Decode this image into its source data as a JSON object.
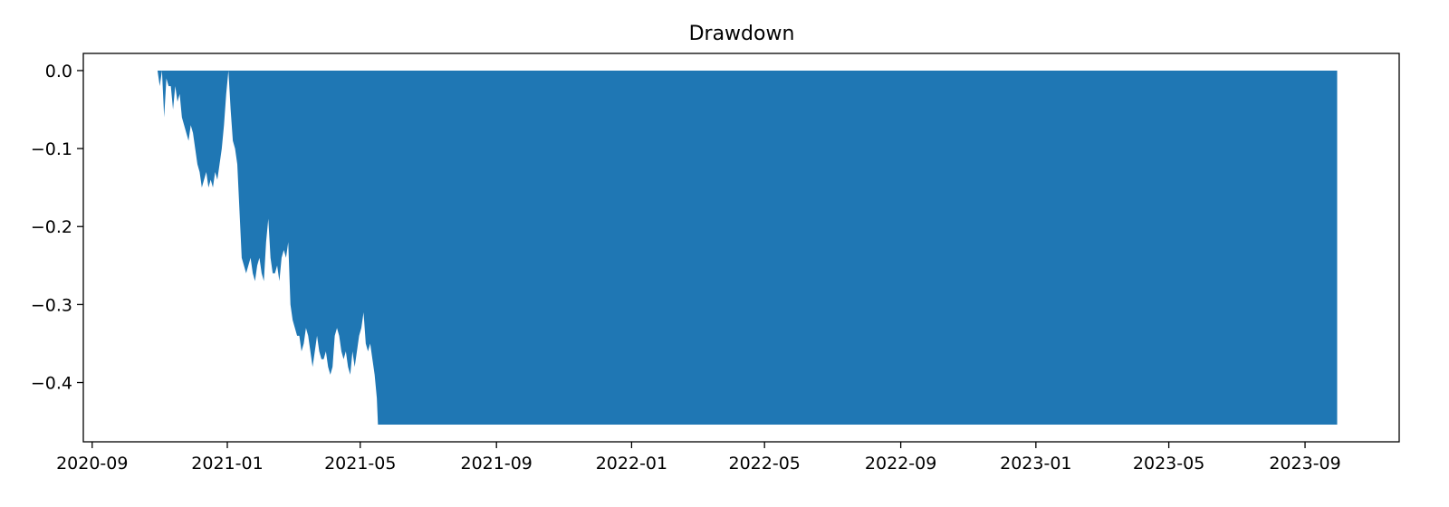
{
  "chart_data": {
    "type": "area",
    "title": "Drawdown",
    "xlabel": "",
    "ylabel": "",
    "x_axis": {
      "scale": "date",
      "ticks": [
        "2020-09-01",
        "2021-01-01",
        "2021-05-01",
        "2021-09-01",
        "2022-01-01",
        "2022-05-01",
        "2022-09-01",
        "2023-01-01",
        "2023-05-01",
        "2023-09-01"
      ],
      "tick_labels": [
        "2020-09",
        "2021-01",
        "2021-05",
        "2021-09",
        "2022-01",
        "2022-05",
        "2022-09",
        "2023-01",
        "2023-05",
        "2023-09"
      ],
      "range": [
        "2020-08-24",
        "2023-11-25"
      ]
    },
    "y_axis": {
      "ticks": [
        0.0,
        -0.1,
        -0.2,
        -0.3,
        -0.4
      ],
      "tick_labels": [
        "0.0",
        "−0.1",
        "−0.2",
        "−0.3",
        "−0.4"
      ],
      "range": [
        -0.476,
        0.022
      ]
    },
    "grid": false,
    "legend": "none",
    "fill_color": "#1f77b4",
    "series": [
      {
        "x": [
          "2020-10-30",
          "2020-11-01",
          "2020-11-03",
          "2020-11-05",
          "2020-11-07",
          "2020-11-09",
          "2020-11-11",
          "2020-11-13",
          "2020-11-15",
          "2020-11-17",
          "2020-11-19",
          "2020-11-21",
          "2020-11-23",
          "2020-11-25",
          "2020-11-27",
          "2020-11-29",
          "2020-12-01",
          "2020-12-03",
          "2020-12-05",
          "2020-12-07",
          "2020-12-09",
          "2020-12-11",
          "2020-12-13",
          "2020-12-15",
          "2020-12-17",
          "2020-12-19",
          "2020-12-21",
          "2020-12-23",
          "2020-12-25",
          "2020-12-27",
          "2020-12-29",
          "2020-12-31",
          "2021-01-02",
          "2021-01-04",
          "2021-01-06",
          "2021-01-08",
          "2021-01-10",
          "2021-01-12",
          "2021-01-14",
          "2021-01-16",
          "2021-01-18",
          "2021-01-20",
          "2021-01-22",
          "2021-01-24",
          "2021-01-26",
          "2021-01-28",
          "2021-01-30",
          "2021-02-01",
          "2021-02-03",
          "2021-02-05",
          "2021-02-07",
          "2021-02-09",
          "2021-02-11",
          "2021-02-13",
          "2021-02-15",
          "2021-02-17",
          "2021-02-19",
          "2021-02-21",
          "2021-02-23",
          "2021-02-25",
          "2021-02-27",
          "2021-03-01",
          "2021-03-03",
          "2021-03-05",
          "2021-03-07",
          "2021-03-09",
          "2021-03-11",
          "2021-03-13",
          "2021-03-15",
          "2021-03-17",
          "2021-03-19",
          "2021-03-21",
          "2021-03-23",
          "2021-03-25",
          "2021-03-27",
          "2021-03-29",
          "2021-03-31",
          "2021-04-02",
          "2021-04-04",
          "2021-04-06",
          "2021-04-08",
          "2021-04-10",
          "2021-04-12",
          "2021-04-14",
          "2021-04-16",
          "2021-04-18",
          "2021-04-20",
          "2021-04-22",
          "2021-04-24",
          "2021-04-26",
          "2021-04-28",
          "2021-04-30",
          "2021-05-02",
          "2021-05-04",
          "2021-05-06",
          "2021-05-08",
          "2021-05-10",
          "2021-05-12",
          "2021-05-14",
          "2021-05-16",
          "2021-05-17",
          "2023-09-30"
        ],
        "y": [
          0.0,
          -0.02,
          0.0,
          -0.06,
          -0.01,
          -0.02,
          -0.02,
          -0.05,
          -0.02,
          -0.04,
          -0.03,
          -0.06,
          -0.07,
          -0.08,
          -0.09,
          -0.07,
          -0.08,
          -0.1,
          -0.12,
          -0.13,
          -0.15,
          -0.14,
          -0.13,
          -0.15,
          -0.14,
          -0.15,
          -0.13,
          -0.14,
          -0.12,
          -0.1,
          -0.07,
          -0.03,
          0.0,
          -0.05,
          -0.09,
          -0.1,
          -0.12,
          -0.18,
          -0.24,
          -0.25,
          -0.26,
          -0.25,
          -0.24,
          -0.26,
          -0.27,
          -0.25,
          -0.24,
          -0.26,
          -0.27,
          -0.22,
          -0.19,
          -0.24,
          -0.26,
          -0.26,
          -0.25,
          -0.27,
          -0.24,
          -0.23,
          -0.24,
          -0.22,
          -0.3,
          -0.32,
          -0.33,
          -0.34,
          -0.34,
          -0.36,
          -0.35,
          -0.33,
          -0.34,
          -0.36,
          -0.38,
          -0.36,
          -0.34,
          -0.36,
          -0.37,
          -0.37,
          -0.36,
          -0.38,
          -0.39,
          -0.38,
          -0.34,
          -0.33,
          -0.34,
          -0.36,
          -0.37,
          -0.36,
          -0.38,
          -0.39,
          -0.36,
          -0.38,
          -0.36,
          -0.34,
          -0.33,
          -0.31,
          -0.35,
          -0.36,
          -0.35,
          -0.37,
          -0.39,
          -0.42,
          -0.454,
          -0.454
        ]
      }
    ]
  }
}
